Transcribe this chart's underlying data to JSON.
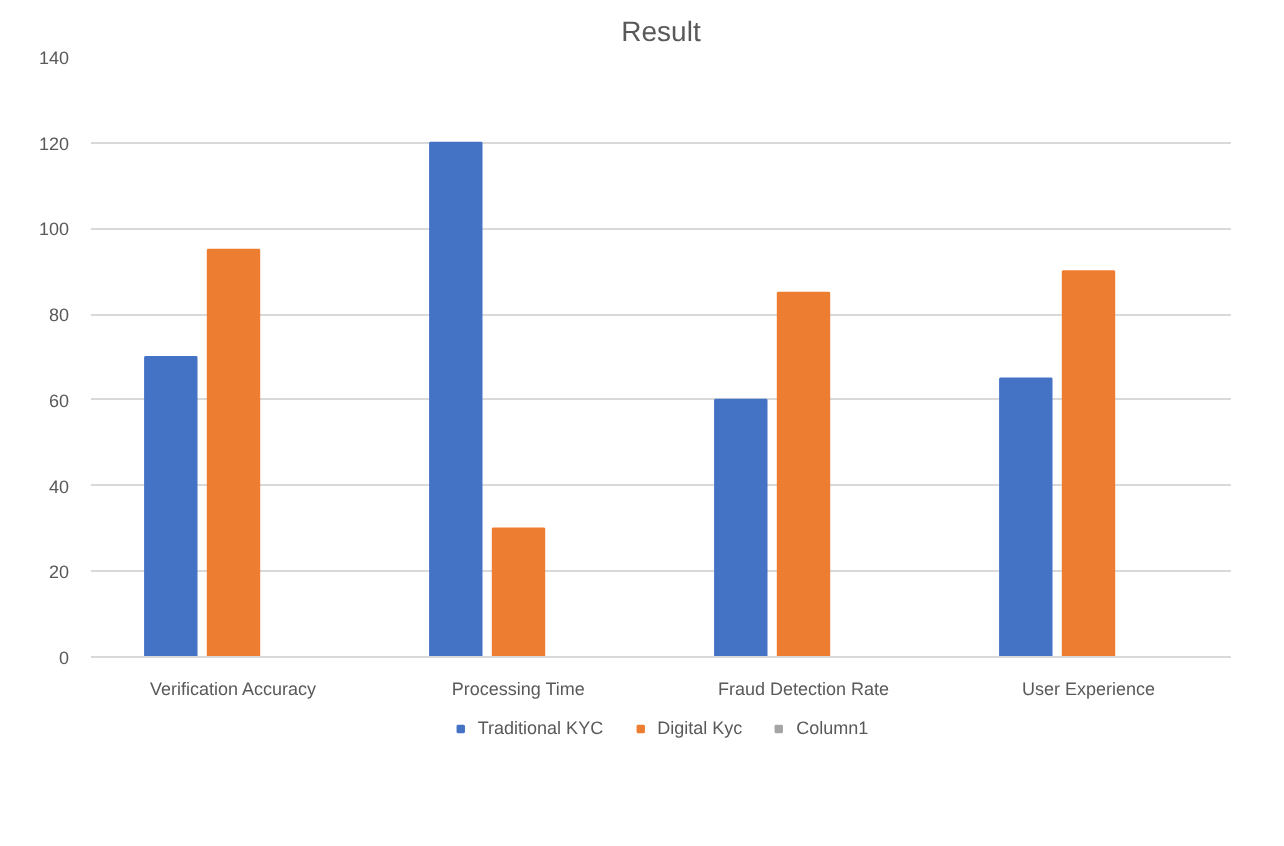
{
  "chart_data": {
    "type": "bar",
    "title": "Result",
    "categories": [
      "Verification Accuracy",
      "Processing Time",
      "Fraud Detection Rate",
      "User Experience"
    ],
    "series": [
      {
        "name": "Traditional KYC",
        "color": "#4472c4",
        "values": [
          70,
          120,
          60,
          65
        ]
      },
      {
        "name": "Digital Kyc",
        "color": "#ed7d31",
        "values": [
          95,
          30,
          85,
          90
        ]
      },
      {
        "name": "Column1",
        "color": "#a5a5a5",
        "values": [
          null,
          null,
          null,
          null
        ]
      }
    ],
    "ylim": [
      0,
      140
    ],
    "yticks": [
      0,
      20,
      40,
      60,
      80,
      100,
      120,
      140
    ],
    "grid": "y",
    "legend": "bottom"
  }
}
